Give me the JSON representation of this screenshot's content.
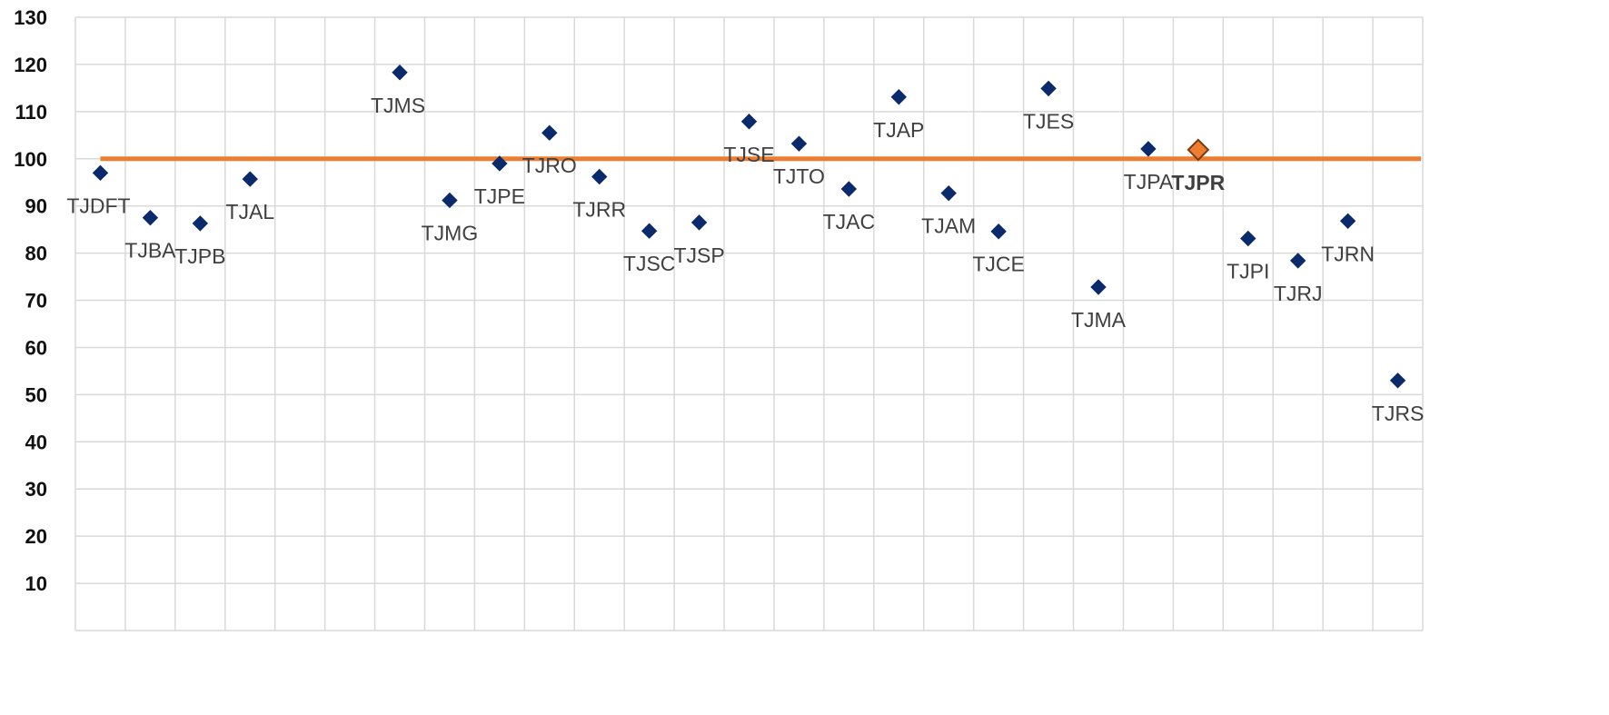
{
  "chart_data": {
    "type": "scatter",
    "title": "",
    "xlabel": "",
    "ylabel": "",
    "ylim": [
      0,
      130
    ],
    "y_ticks": [
      "",
      "10",
      "20",
      "30",
      "40",
      "50",
      "60",
      "70",
      "80",
      "90",
      "100",
      "110",
      "120",
      "130"
    ],
    "grid": true,
    "reference_line": {
      "value": 100,
      "color": "#ed7d31"
    },
    "marker_color": "#0b2a6b",
    "highlight_color": "#ed7d31",
    "points": [
      {
        "label": "TJDFT",
        "x": 1,
        "y": 97,
        "label_pos": "below-left"
      },
      {
        "label": "TJBA",
        "x": 2,
        "y": 87.5,
        "label_pos": "below"
      },
      {
        "label": "TJPB",
        "x": 3,
        "y": 86.3,
        "label_pos": "below"
      },
      {
        "label": "TJAL",
        "x": 4,
        "y": 95.7,
        "label_pos": "below"
      },
      {
        "label": "TJMS",
        "x": 7,
        "y": 118.3,
        "label_pos": "below-left"
      },
      {
        "label": "TJMG",
        "x": 8,
        "y": 91.2,
        "label_pos": "below"
      },
      {
        "label": "TJPE",
        "x": 9,
        "y": 99,
        "label_pos": "below"
      },
      {
        "label": "TJRO",
        "x": 10,
        "y": 105.5,
        "label_pos": "below"
      },
      {
        "label": "TJRR",
        "x": 11,
        "y": 96.2,
        "label_pos": "below"
      },
      {
        "label": "TJSC",
        "x": 12,
        "y": 84.7,
        "label_pos": "below"
      },
      {
        "label": "TJSP",
        "x": 13,
        "y": 86.5,
        "label_pos": "below"
      },
      {
        "label": "TJSE",
        "x": 14,
        "y": 107.9,
        "label_pos": "below"
      },
      {
        "label": "TJTO",
        "x": 15,
        "y": 103.2,
        "label_pos": "below"
      },
      {
        "label": "TJAC",
        "x": 16,
        "y": 93.6,
        "label_pos": "below"
      },
      {
        "label": "TJAP",
        "x": 17,
        "y": 113.1,
        "label_pos": "below"
      },
      {
        "label": "TJAM",
        "x": 18,
        "y": 92.7,
        "label_pos": "below"
      },
      {
        "label": "TJCE",
        "x": 19,
        "y": 84.6,
        "label_pos": "below"
      },
      {
        "label": "TJES",
        "x": 20,
        "y": 114.9,
        "label_pos": "below"
      },
      {
        "label": "TJMA",
        "x": 21,
        "y": 72.8,
        "label_pos": "below"
      },
      {
        "label": "TJPA",
        "x": 22,
        "y": 102.1,
        "label_pos": "below"
      },
      {
        "label": "TJPR",
        "x": 23,
        "y": 101.9,
        "label_pos": "below",
        "highlight": true
      },
      {
        "label": "TJPI",
        "x": 24,
        "y": 83.1,
        "label_pos": "below"
      },
      {
        "label": "TJRJ",
        "x": 25,
        "y": 78.4,
        "label_pos": "below"
      },
      {
        "label": "TJRN",
        "x": 26,
        "y": 86.8,
        "label_pos": "below"
      },
      {
        "label": "TJRS",
        "x": 27,
        "y": 53,
        "label_pos": "below"
      }
    ]
  }
}
